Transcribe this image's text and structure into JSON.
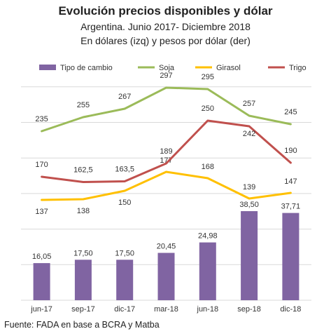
{
  "title": "Evolución precios disponibles y dólar",
  "subtitle": "Argentina. Junio 2017- Diciembre 2018",
  "subtitle2": "En dólares (izq) y pesos por dólar (der)",
  "source": "Fuente: FADA en base a BCRA y Matba",
  "colors": {
    "tipo_de_cambio": "#8064A2",
    "soja": "#9BBB59",
    "girasol": "#FFC000",
    "trigo": "#C0504D",
    "grid": "#D9D9D9"
  },
  "chart_data": {
    "type": "bar+line",
    "categories": [
      "jun-17",
      "sep-17",
      "dic-17",
      "mar-18",
      "jun-18",
      "sep-18",
      "dic-18"
    ],
    "legend_position": "top",
    "grid": true,
    "series": [
      {
        "name": "Tipo de cambio",
        "type": "bar",
        "axis": "right",
        "values": [
          16.05,
          17.5,
          17.5,
          20.45,
          24.98,
          38.5,
          37.71
        ],
        "labels": [
          "16,05",
          "17,50",
          "17,50",
          "20,45",
          "24,98",
          "38,50",
          "37,71"
        ]
      },
      {
        "name": "Soja",
        "type": "line",
        "axis": "left",
        "values": [
          235,
          255,
          267,
          297,
          295,
          257,
          245
        ],
        "labels": [
          "235",
          "255",
          "267",
          "297",
          "295",
          "257",
          "245"
        ]
      },
      {
        "name": "Girasol",
        "type": "line",
        "axis": "left",
        "values": [
          137,
          138,
          150,
          177,
          168,
          139,
          147
        ],
        "labels": [
          "137",
          "138",
          "150",
          "177",
          "168",
          "139",
          "147"
        ]
      },
      {
        "name": "Trigo",
        "type": "line",
        "axis": "left",
        "values": [
          170,
          162.5,
          163.5,
          189,
          250,
          242,
          190
        ],
        "labels": [
          "170",
          "162,5",
          "163,5",
          "189",
          "250",
          "242",
          "190"
        ]
      }
    ]
  }
}
